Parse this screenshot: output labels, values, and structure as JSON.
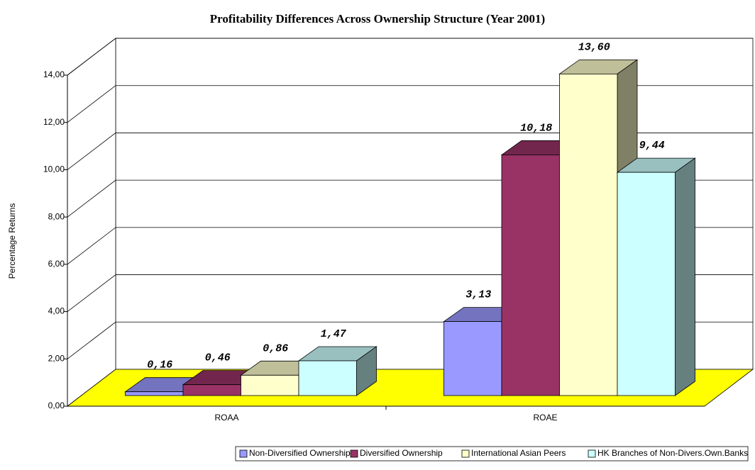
{
  "chart_data": {
    "type": "bar3d",
    "title": "Profitability Differences Across Ownership Structure (Year 2001)",
    "y_label": "Percentage Returns",
    "categories": [
      "ROAA",
      "ROAE"
    ],
    "ylim": [
      0,
      14
    ],
    "yticks": [
      {
        "value": 0,
        "label": "0,00"
      },
      {
        "value": 2,
        "label": "2,00"
      },
      {
        "value": 4,
        "label": "4,00"
      },
      {
        "value": 6,
        "label": "6,00"
      },
      {
        "value": 8,
        "label": "8,00"
      },
      {
        "value": 10,
        "label": "10,00"
      },
      {
        "value": 12,
        "label": "12,00"
      },
      {
        "value": 14,
        "label": "14,00"
      }
    ],
    "grid": true,
    "legend": "bottom",
    "floor_color": "#ffff00",
    "series": [
      {
        "name": "Non-Diversified Ownership",
        "color": "#9999ff",
        "values": [
          0.16,
          3.13
        ],
        "value_labels": [
          "0,16",
          "3,13"
        ]
      },
      {
        "name": "Diversified Ownership",
        "color": "#993366",
        "values": [
          0.46,
          10.18
        ],
        "value_labels": [
          "0,46",
          "10,18"
        ]
      },
      {
        "name": "International Asian Peers",
        "color": "#ffffcc",
        "values": [
          0.86,
          13.6
        ],
        "value_labels": [
          "0,86",
          "13,60"
        ]
      },
      {
        "name": "HK Branches of Non-Divers.Own.Banks",
        "color": "#ccffff",
        "values": [
          1.47,
          9.44
        ],
        "value_labels": [
          "1,47",
          "9,44"
        ]
      }
    ]
  }
}
